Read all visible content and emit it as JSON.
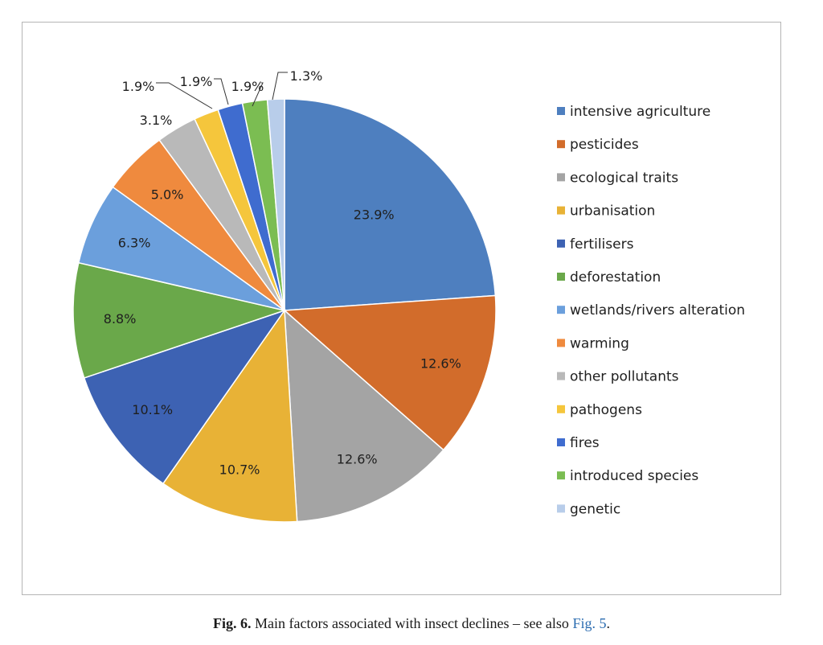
{
  "chart_data": {
    "type": "pie",
    "title": "",
    "start": "12 o'clock, clockwise",
    "categories": [
      "intensive agriculture",
      "pesticides",
      "ecological traits",
      "urbanisation",
      "fertilisers",
      "deforestation",
      "wetlands/rivers alteration",
      "warming",
      "other pollutants",
      "pathogens",
      "fires",
      "introduced species",
      "genetic"
    ],
    "values": [
      23.9,
      12.6,
      12.6,
      10.7,
      10.1,
      8.8,
      6.3,
      5.0,
      3.1,
      1.9,
      1.9,
      1.9,
      1.3
    ],
    "labels": [
      "23.9%",
      "12.6%",
      "12.6%",
      "10.7%",
      "10.1%",
      "8.8%",
      "6.3%",
      "5.0%",
      "3.1%",
      "1.9%",
      "1.9%",
      "1.9%",
      "1.3%"
    ],
    "colors": [
      "#4e7fbf",
      "#d26c2b",
      "#a4a4a4",
      "#e8b236",
      "#3d62b3",
      "#6aa84a",
      "#6b9fdc",
      "#ef8a3e",
      "#b9b9b9",
      "#f5c63c",
      "#3f6ccf",
      "#7bbd52",
      "#b8cdea"
    ],
    "legend_position": "right"
  },
  "caption": {
    "fig_number": "Fig. 6.",
    "text": " Main factors associated with insect declines – see also ",
    "link_text": "Fig. 5",
    "end": "."
  }
}
